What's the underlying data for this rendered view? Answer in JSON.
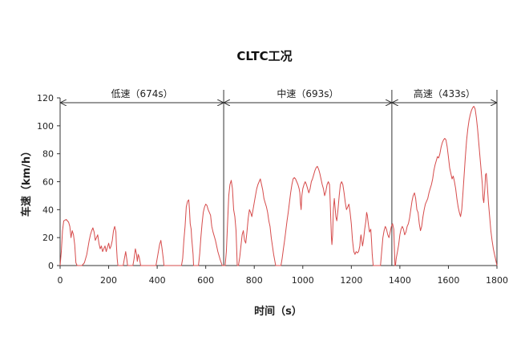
{
  "chart_data": {
    "type": "line",
    "title": "CLTC工况",
    "xlabel": "时间（s）",
    "ylabel": "车速（km/h）",
    "xlim": [
      0,
      1800
    ],
    "ylim": [
      0,
      120
    ],
    "x_ticks": [
      0,
      200,
      400,
      600,
      800,
      1000,
      1200,
      1400,
      1600,
      1800
    ],
    "y_ticks": [
      0,
      20,
      40,
      60,
      80,
      100,
      120
    ],
    "grid": false,
    "line_color": "#d64b4b",
    "segments": [
      {
        "label": "低速（674s）",
        "start": 0,
        "end": 674
      },
      {
        "label": "中速（693s）",
        "start": 674,
        "end": 1367
      },
      {
        "label": "高速（433s）",
        "start": 1367,
        "end": 1800
      }
    ],
    "series": [
      {
        "values": [
          [
            0,
            0
          ],
          [
            5,
            10
          ],
          [
            10,
            25
          ],
          [
            15,
            32
          ],
          [
            25,
            33
          ],
          [
            35,
            31
          ],
          [
            40,
            28
          ],
          [
            45,
            20
          ],
          [
            50,
            25
          ],
          [
            55,
            22
          ],
          [
            60,
            15
          ],
          [
            65,
            2
          ],
          [
            70,
            0
          ],
          [
            90,
            0
          ],
          [
            100,
            2
          ],
          [
            110,
            8
          ],
          [
            120,
            18
          ],
          [
            125,
            22
          ],
          [
            130,
            25
          ],
          [
            135,
            27
          ],
          [
            140,
            24
          ],
          [
            145,
            18
          ],
          [
            150,
            20
          ],
          [
            155,
            22
          ],
          [
            160,
            16
          ],
          [
            165,
            12
          ],
          [
            170,
            14
          ],
          [
            175,
            10
          ],
          [
            180,
            12
          ],
          [
            185,
            14
          ],
          [
            190,
            10
          ],
          [
            195,
            13
          ],
          [
            200,
            16
          ],
          [
            205,
            12
          ],
          [
            210,
            14
          ],
          [
            215,
            18
          ],
          [
            220,
            25
          ],
          [
            225,
            28
          ],
          [
            230,
            24
          ],
          [
            232,
            15
          ],
          [
            235,
            5
          ],
          [
            238,
            0
          ],
          [
            260,
            0
          ],
          [
            265,
            5
          ],
          [
            270,
            10
          ],
          [
            275,
            4
          ],
          [
            278,
            0
          ],
          [
            300,
            0
          ],
          [
            305,
            5
          ],
          [
            310,
            12
          ],
          [
            315,
            8
          ],
          [
            318,
            3
          ],
          [
            322,
            8
          ],
          [
            326,
            6
          ],
          [
            330,
            2
          ],
          [
            332,
            0
          ],
          [
            395,
            0
          ],
          [
            400,
            5
          ],
          [
            410,
            15
          ],
          [
            415,
            18
          ],
          [
            420,
            12
          ],
          [
            425,
            5
          ],
          [
            428,
            0
          ],
          [
            500,
            0
          ],
          [
            505,
            5
          ],
          [
            510,
            18
          ],
          [
            515,
            28
          ],
          [
            520,
            42
          ],
          [
            525,
            46
          ],
          [
            530,
            47
          ],
          [
            533,
            40
          ],
          [
            536,
            30
          ],
          [
            540,
            26
          ],
          [
            542,
            20
          ],
          [
            545,
            14
          ],
          [
            548,
            8
          ],
          [
            550,
            0
          ],
          [
            570,
            0
          ],
          [
            575,
            8
          ],
          [
            580,
            20
          ],
          [
            585,
            30
          ],
          [
            590,
            38
          ],
          [
            595,
            42
          ],
          [
            600,
            44
          ],
          [
            605,
            43
          ],
          [
            610,
            40
          ],
          [
            615,
            38
          ],
          [
            620,
            36
          ],
          [
            625,
            28
          ],
          [
            630,
            24
          ],
          [
            640,
            18
          ],
          [
            650,
            10
          ],
          [
            660,
            4
          ],
          [
            668,
            0
          ],
          [
            680,
            0
          ],
          [
            685,
            10
          ],
          [
            690,
            30
          ],
          [
            695,
            50
          ],
          [
            700,
            58
          ],
          [
            705,
            61
          ],
          [
            710,
            55
          ],
          [
            715,
            40
          ],
          [
            720,
            35
          ],
          [
            725,
            25
          ],
          [
            728,
            10
          ],
          [
            730,
            0
          ],
          [
            735,
            0
          ],
          [
            740,
            6
          ],
          [
            745,
            14
          ],
          [
            750,
            22
          ],
          [
            755,
            25
          ],
          [
            760,
            18
          ],
          [
            765,
            16
          ],
          [
            770,
            24
          ],
          [
            775,
            34
          ],
          [
            780,
            40
          ],
          [
            785,
            38
          ],
          [
            790,
            35
          ],
          [
            795,
            40
          ],
          [
            800,
            45
          ],
          [
            805,
            50
          ],
          [
            810,
            55
          ],
          [
            815,
            58
          ],
          [
            820,
            60
          ],
          [
            825,
            62
          ],
          [
            830,
            58
          ],
          [
            835,
            54
          ],
          [
            840,
            48
          ],
          [
            845,
            45
          ],
          [
            850,
            42
          ],
          [
            855,
            38
          ],
          [
            860,
            32
          ],
          [
            865,
            28
          ],
          [
            870,
            20
          ],
          [
            875,
            14
          ],
          [
            880,
            8
          ],
          [
            885,
            3
          ],
          [
            888,
            0
          ],
          [
            910,
            0
          ],
          [
            915,
            5
          ],
          [
            920,
            12
          ],
          [
            925,
            18
          ],
          [
            930,
            25
          ],
          [
            935,
            32
          ],
          [
            940,
            38
          ],
          [
            945,
            45
          ],
          [
            950,
            52
          ],
          [
            955,
            58
          ],
          [
            960,
            62
          ],
          [
            965,
            63
          ],
          [
            970,
            62
          ],
          [
            975,
            60
          ],
          [
            980,
            58
          ],
          [
            985,
            55
          ],
          [
            988,
            52
          ],
          [
            990,
            45
          ],
          [
            993,
            40
          ],
          [
            996,
            50
          ],
          [
            1000,
            55
          ],
          [
            1005,
            58
          ],
          [
            1010,
            60
          ],
          [
            1015,
            58
          ],
          [
            1020,
            55
          ],
          [
            1025,
            52
          ],
          [
            1030,
            55
          ],
          [
            1035,
            60
          ],
          [
            1040,
            62
          ],
          [
            1045,
            65
          ],
          [
            1050,
            68
          ],
          [
            1055,
            70
          ],
          [
            1060,
            71
          ],
          [
            1065,
            69
          ],
          [
            1070,
            66
          ],
          [
            1075,
            62
          ],
          [
            1080,
            58
          ],
          [
            1085,
            55
          ],
          [
            1090,
            50
          ],
          [
            1095,
            53
          ],
          [
            1100,
            58
          ],
          [
            1105,
            60
          ],
          [
            1110,
            58
          ],
          [
            1112,
            50
          ],
          [
            1115,
            35
          ],
          [
            1118,
            20
          ],
          [
            1120,
            15
          ],
          [
            1123,
            22
          ],
          [
            1126,
            40
          ],
          [
            1130,
            48
          ],
          [
            1133,
            42
          ],
          [
            1136,
            35
          ],
          [
            1140,
            32
          ],
          [
            1145,
            40
          ],
          [
            1150,
            50
          ],
          [
            1155,
            58
          ],
          [
            1160,
            60
          ],
          [
            1165,
            58
          ],
          [
            1170,
            52
          ],
          [
            1175,
            45
          ],
          [
            1180,
            40
          ],
          [
            1185,
            42
          ],
          [
            1190,
            44
          ],
          [
            1195,
            38
          ],
          [
            1200,
            30
          ],
          [
            1205,
            18
          ],
          [
            1210,
            10
          ],
          [
            1215,
            8
          ],
          [
            1220,
            10
          ],
          [
            1225,
            9
          ],
          [
            1230,
            10
          ],
          [
            1235,
            14
          ],
          [
            1238,
            20
          ],
          [
            1240,
            22
          ],
          [
            1243,
            18
          ],
          [
            1246,
            14
          ],
          [
            1250,
            18
          ],
          [
            1255,
            26
          ],
          [
            1260,
            32
          ],
          [
            1263,
            38
          ],
          [
            1266,
            36
          ],
          [
            1270,
            30
          ],
          [
            1275,
            24
          ],
          [
            1280,
            26
          ],
          [
            1283,
            18
          ],
          [
            1286,
            8
          ],
          [
            1290,
            0
          ],
          [
            1320,
            0
          ],
          [
            1325,
            10
          ],
          [
            1330,
            20
          ],
          [
            1335,
            25
          ],
          [
            1340,
            28
          ],
          [
            1345,
            26
          ],
          [
            1350,
            22
          ],
          [
            1355,
            20
          ],
          [
            1360,
            24
          ],
          [
            1365,
            28
          ],
          [
            1370,
            30
          ],
          [
            1375,
            26
          ],
          [
            1378,
            10
          ],
          [
            1380,
            0
          ],
          [
            1382,
            0
          ],
          [
            1385,
            5
          ],
          [
            1390,
            10
          ],
          [
            1395,
            15
          ],
          [
            1400,
            22
          ],
          [
            1405,
            26
          ],
          [
            1410,
            28
          ],
          [
            1415,
            26
          ],
          [
            1420,
            22
          ],
          [
            1425,
            24
          ],
          [
            1430,
            28
          ],
          [
            1435,
            30
          ],
          [
            1440,
            34
          ],
          [
            1445,
            40
          ],
          [
            1450,
            46
          ],
          [
            1455,
            50
          ],
          [
            1460,
            52
          ],
          [
            1465,
            48
          ],
          [
            1470,
            40
          ],
          [
            1475,
            38
          ],
          [
            1480,
            30
          ],
          [
            1485,
            25
          ],
          [
            1490,
            28
          ],
          [
            1495,
            35
          ],
          [
            1500,
            40
          ],
          [
            1505,
            44
          ],
          [
            1510,
            46
          ],
          [
            1515,
            48
          ],
          [
            1520,
            52
          ],
          [
            1525,
            55
          ],
          [
            1530,
            58
          ],
          [
            1535,
            62
          ],
          [
            1540,
            68
          ],
          [
            1545,
            72
          ],
          [
            1550,
            75
          ],
          [
            1555,
            78
          ],
          [
            1560,
            77
          ],
          [
            1565,
            80
          ],
          [
            1570,
            85
          ],
          [
            1575,
            88
          ],
          [
            1580,
            90
          ],
          [
            1585,
            91
          ],
          [
            1590,
            90
          ],
          [
            1595,
            85
          ],
          [
            1600,
            78
          ],
          [
            1605,
            70
          ],
          [
            1610,
            66
          ],
          [
            1615,
            62
          ],
          [
            1620,
            64
          ],
          [
            1625,
            60
          ],
          [
            1630,
            55
          ],
          [
            1635,
            48
          ],
          [
            1640,
            42
          ],
          [
            1645,
            38
          ],
          [
            1650,
            35
          ],
          [
            1655,
            40
          ],
          [
            1660,
            52
          ],
          [
            1665,
            65
          ],
          [
            1670,
            78
          ],
          [
            1675,
            90
          ],
          [
            1680,
            98
          ],
          [
            1685,
            104
          ],
          [
            1690,
            108
          ],
          [
            1695,
            111
          ],
          [
            1700,
            113
          ],
          [
            1705,
            114
          ],
          [
            1710,
            112
          ],
          [
            1715,
            106
          ],
          [
            1720,
            98
          ],
          [
            1725,
            88
          ],
          [
            1730,
            78
          ],
          [
            1735,
            68
          ],
          [
            1740,
            58
          ],
          [
            1743,
            48
          ],
          [
            1746,
            45
          ],
          [
            1750,
            55
          ],
          [
            1753,
            65
          ],
          [
            1756,
            66
          ],
          [
            1760,
            58
          ],
          [
            1765,
            45
          ],
          [
            1770,
            35
          ],
          [
            1775,
            25
          ],
          [
            1780,
            18
          ],
          [
            1785,
            12
          ],
          [
            1790,
            8
          ],
          [
            1795,
            4
          ],
          [
            1800,
            0
          ]
        ]
      }
    ]
  }
}
